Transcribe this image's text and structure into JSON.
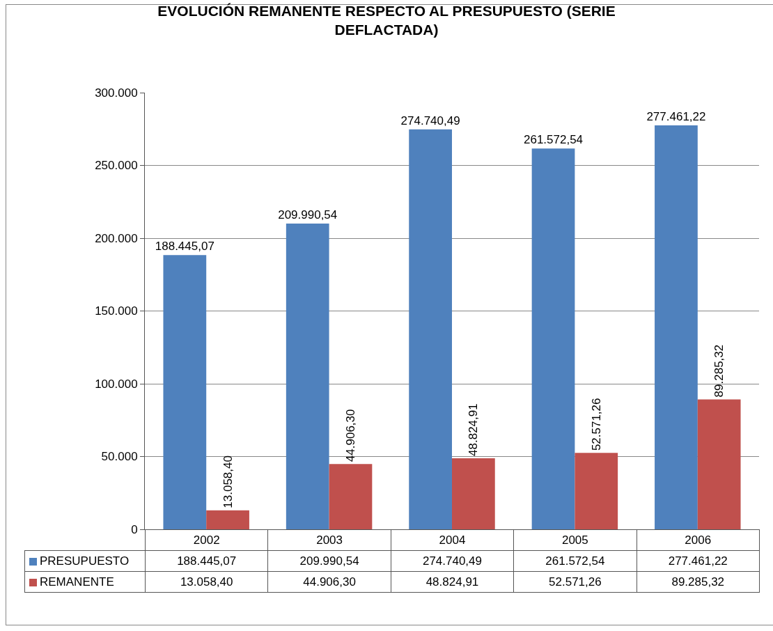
{
  "chart_data": {
    "type": "bar",
    "title": "EVOLUCIÓN REMANENTE RESPECTO AL PRESUPUESTO (SERIE DEFLACTADA)",
    "categories": [
      "2002",
      "2003",
      "2004",
      "2005",
      "2006"
    ],
    "series": [
      {
        "name": "PRESUPUESTO",
        "color": "#4f81bd",
        "values": [
          188445.07,
          209990.54,
          274740.49,
          261572.54,
          277461.22
        ],
        "value_labels": [
          "188.445,07",
          "209.990,54",
          "274.740,49",
          "261.572,54",
          "277.461,22"
        ]
      },
      {
        "name": "REMANENTE",
        "color": "#c0504d",
        "values": [
          13058.4,
          44906.3,
          48824.91,
          52571.26,
          89285.32
        ],
        "value_labels": [
          "13.058,40",
          "44.906,30",
          "48.824,91",
          "52.571,26",
          "89.285,32"
        ]
      }
    ],
    "ylim": [
      0,
      300000
    ],
    "yticks": [
      0,
      {
        "value": 50000,
        "label": "50.000"
      },
      {
        "value": 100000,
        "label": "100.000"
      },
      {
        "value": 150000,
        "label": "150.000"
      },
      {
        "value": 200000,
        "label": "200.000"
      },
      {
        "value": 250000,
        "label": "250.000"
      },
      {
        "value": 300000,
        "label": "300.000"
      }
    ],
    "grid": "y",
    "legend": "bottom"
  }
}
